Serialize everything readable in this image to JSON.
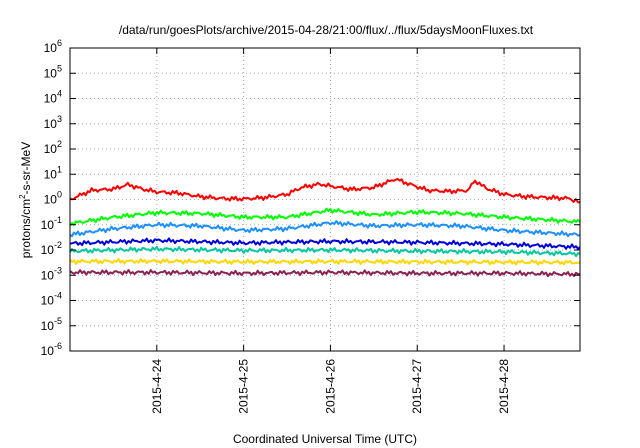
{
  "chart_data": {
    "type": "line",
    "title": "/data/run/goesPlots/archive/2015-04-28/21:00/flux/../flux/5daysMoonFluxes.txt",
    "xlabel": "Coordinated Universal Time (UTC)",
    "ylabel": {
      "prefix": "protons/cm",
      "superscript": "2",
      "suffix": "-s-sr-MeV"
    },
    "y_scale": "log",
    "ylim": [
      1e-06,
      1000000
    ],
    "y_ticks": [
      {
        "base": "10",
        "exp": "6",
        "value": 1000000
      },
      {
        "base": "10",
        "exp": "5",
        "value": 100000
      },
      {
        "base": "10",
        "exp": "4",
        "value": 10000
      },
      {
        "base": "10",
        "exp": "3",
        "value": 1000
      },
      {
        "base": "10",
        "exp": "2",
        "value": 100
      },
      {
        "base": "10",
        "exp": "1",
        "value": 10
      },
      {
        "base": "10",
        "exp": "0",
        "value": 1
      },
      {
        "base": "10",
        "exp": "-1",
        "value": 0.1
      },
      {
        "base": "10",
        "exp": "-2",
        "value": 0.01
      },
      {
        "base": "10",
        "exp": "-3",
        "value": 0.001
      },
      {
        "base": "10",
        "exp": "-4",
        "value": 0.0001
      },
      {
        "base": "10",
        "exp": "-5",
        "value": 1e-05
      },
      {
        "base": "10",
        "exp": "-6",
        "value": 1e-06
      }
    ],
    "xlim": [
      "2015-04-23 00:00",
      "2015-04-28 21:00"
    ],
    "x_ticks": [
      "2015-4-24",
      "2015-4-25",
      "2015-4-26",
      "2015-4-27",
      "2015-4-28"
    ],
    "grid": true,
    "series": [
      {
        "color": "#ff0000",
        "values": [
          {
            "t": "2015-04-23 00:00",
            "v": 1.0
          },
          {
            "t": "2015-04-23 06:00",
            "v": 2.3
          },
          {
            "t": "2015-04-23 12:00",
            "v": 2.6
          },
          {
            "t": "2015-04-23 16:00",
            "v": 3.9
          },
          {
            "t": "2015-04-23 20:00",
            "v": 2.6
          },
          {
            "t": "2015-04-24 00:00",
            "v": 2.0
          },
          {
            "t": "2015-04-24 06:00",
            "v": 1.8
          },
          {
            "t": "2015-04-24 12:00",
            "v": 1.3
          },
          {
            "t": "2015-04-24 18:00",
            "v": 1.1
          },
          {
            "t": "2015-04-25 00:00",
            "v": 1.05
          },
          {
            "t": "2015-04-25 06:00",
            "v": 1.2
          },
          {
            "t": "2015-04-25 12:00",
            "v": 1.6
          },
          {
            "t": "2015-04-25 16:00",
            "v": 3.0
          },
          {
            "t": "2015-04-25 21:00",
            "v": 4.1
          },
          {
            "t": "2015-04-26 00:00",
            "v": 3.4
          },
          {
            "t": "2015-04-26 06:00",
            "v": 2.5
          },
          {
            "t": "2015-04-26 12:00",
            "v": 3.0
          },
          {
            "t": "2015-04-26 18:00",
            "v": 6.5
          },
          {
            "t": "2015-04-26 22:00",
            "v": 4.0
          },
          {
            "t": "2015-04-27 03:00",
            "v": 2.3
          },
          {
            "t": "2015-04-27 09:00",
            "v": 2.1
          },
          {
            "t": "2015-04-27 14:00",
            "v": 2.3
          },
          {
            "t": "2015-04-27 16:00",
            "v": 5.6
          },
          {
            "t": "2015-04-27 19:00",
            "v": 2.8
          },
          {
            "t": "2015-04-28 00:00",
            "v": 1.6
          },
          {
            "t": "2015-04-28 06:00",
            "v": 1.3
          },
          {
            "t": "2015-04-28 12:00",
            "v": 1.2
          },
          {
            "t": "2015-04-28 18:00",
            "v": 1.1
          },
          {
            "t": "2015-04-28 21:00",
            "v": 0.75
          }
        ]
      },
      {
        "color": "#00ff00",
        "values": [
          {
            "t": "2015-04-23 00:00",
            "v": 0.11
          },
          {
            "t": "2015-04-23 12:00",
            "v": 0.2
          },
          {
            "t": "2015-04-24 00:00",
            "v": 0.3
          },
          {
            "t": "2015-04-24 12:00",
            "v": 0.28
          },
          {
            "t": "2015-04-25 00:00",
            "v": 0.2
          },
          {
            "t": "2015-04-25 12:00",
            "v": 0.2
          },
          {
            "t": "2015-04-26 00:00",
            "v": 0.38
          },
          {
            "t": "2015-04-26 12:00",
            "v": 0.25
          },
          {
            "t": "2015-04-27 00:00",
            "v": 0.32
          },
          {
            "t": "2015-04-27 12:00",
            "v": 0.28
          },
          {
            "t": "2015-04-28 00:00",
            "v": 0.2
          },
          {
            "t": "2015-04-28 21:00",
            "v": 0.13
          }
        ]
      },
      {
        "color": "#1e90ff",
        "values": [
          {
            "t": "2015-04-23 00:00",
            "v": 0.04
          },
          {
            "t": "2015-04-23 12:00",
            "v": 0.07
          },
          {
            "t": "2015-04-24 00:00",
            "v": 0.1
          },
          {
            "t": "2015-04-24 12:00",
            "v": 0.09
          },
          {
            "t": "2015-04-25 00:00",
            "v": 0.06
          },
          {
            "t": "2015-04-25 12:00",
            "v": 0.07
          },
          {
            "t": "2015-04-26 00:00",
            "v": 0.12
          },
          {
            "t": "2015-04-26 12:00",
            "v": 0.09
          },
          {
            "t": "2015-04-27 00:00",
            "v": 0.1
          },
          {
            "t": "2015-04-27 12:00",
            "v": 0.09
          },
          {
            "t": "2015-04-28 00:00",
            "v": 0.06
          },
          {
            "t": "2015-04-28 21:00",
            "v": 0.04
          }
        ]
      },
      {
        "color": "#0000dd",
        "values": [
          {
            "t": "2015-04-23 00:00",
            "v": 0.018
          },
          {
            "t": "2015-04-24 00:00",
            "v": 0.024
          },
          {
            "t": "2015-04-25 00:00",
            "v": 0.019
          },
          {
            "t": "2015-04-26 00:00",
            "v": 0.022
          },
          {
            "t": "2015-04-27 00:00",
            "v": 0.02
          },
          {
            "t": "2015-04-28 00:00",
            "v": 0.017
          },
          {
            "t": "2015-04-28 21:00",
            "v": 0.013
          }
        ]
      },
      {
        "color": "#00c8a0",
        "values": [
          {
            "t": "2015-04-23 00:00",
            "v": 0.009
          },
          {
            "t": "2015-04-24 00:00",
            "v": 0.011
          },
          {
            "t": "2015-04-25 00:00",
            "v": 0.0095
          },
          {
            "t": "2015-04-26 00:00",
            "v": 0.01
          },
          {
            "t": "2015-04-27 00:00",
            "v": 0.009
          },
          {
            "t": "2015-04-28 00:00",
            "v": 0.0085
          },
          {
            "t": "2015-04-28 21:00",
            "v": 0.007
          }
        ]
      },
      {
        "color": "#ffd700",
        "values": [
          {
            "t": "2015-04-23 00:00",
            "v": 0.0035
          },
          {
            "t": "2015-04-24 00:00",
            "v": 0.0036
          },
          {
            "t": "2015-04-25 00:00",
            "v": 0.0034
          },
          {
            "t": "2015-04-26 00:00",
            "v": 0.0035
          },
          {
            "t": "2015-04-27 00:00",
            "v": 0.0034
          },
          {
            "t": "2015-04-28 00:00",
            "v": 0.0033
          },
          {
            "t": "2015-04-28 21:00",
            "v": 0.0032
          }
        ]
      },
      {
        "color": "#8b2252",
        "values": [
          {
            "t": "2015-04-23 00:00",
            "v": 0.0013
          },
          {
            "t": "2015-04-24 00:00",
            "v": 0.0013
          },
          {
            "t": "2015-04-25 00:00",
            "v": 0.0012
          },
          {
            "t": "2015-04-26 00:00",
            "v": 0.0013
          },
          {
            "t": "2015-04-27 00:00",
            "v": 0.0012
          },
          {
            "t": "2015-04-28 00:00",
            "v": 0.0012
          },
          {
            "t": "2015-04-28 21:00",
            "v": 0.0011
          }
        ]
      }
    ]
  }
}
